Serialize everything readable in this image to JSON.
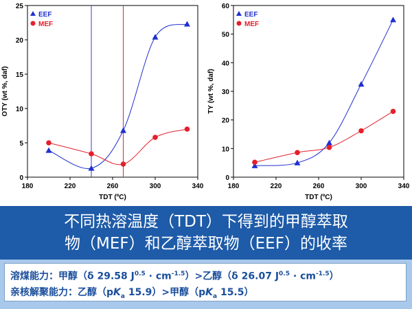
{
  "chart_data": [
    {
      "type": "line",
      "xlabel": "TDT (ºC)",
      "ylabel": "OTY (wt %, daf)",
      "xlim": [
        180,
        340
      ],
      "ylim": [
        0,
        25
      ],
      "xticks": [
        180,
        220,
        260,
        300,
        340
      ],
      "yticks": [
        0,
        5,
        10,
        15,
        20,
        25
      ],
      "legend_position": "top-left",
      "vlines": [
        {
          "x": 240,
          "color": "#3a3ad0"
        },
        {
          "x": 270,
          "color": "#c0303a"
        }
      ],
      "series": [
        {
          "name": "EEF",
          "marker": "triangle",
          "color": "#1f2fcf",
          "x": [
            200,
            240,
            270,
            300,
            330
          ],
          "y": [
            3.9,
            1.3,
            6.8,
            20.4,
            22.3
          ]
        },
        {
          "name": "MEF",
          "marker": "circle",
          "color": "#e3202c",
          "x": [
            200,
            240,
            270,
            300,
            330
          ],
          "y": [
            5.0,
            3.4,
            1.9,
            5.8,
            7.0
          ]
        }
      ]
    },
    {
      "type": "line",
      "xlabel": "TDT (ºC)",
      "ylabel": "TY (wt %, daf)",
      "xlim": [
        180,
        340
      ],
      "ylim": [
        0,
        60
      ],
      "xticks": [
        180,
        220,
        260,
        300,
        340
      ],
      "yticks": [
        0,
        10,
        20,
        30,
        40,
        50,
        60
      ],
      "legend_position": "top-left",
      "series": [
        {
          "name": "EEF",
          "marker": "triangle",
          "color": "#1f2fcf",
          "x": [
            200,
            240,
            270,
            300,
            330
          ],
          "y": [
            4.0,
            5.0,
            12.0,
            32.5,
            55.0
          ]
        },
        {
          "name": "MEF",
          "marker": "circle",
          "color": "#e3202c",
          "x": [
            200,
            240,
            270,
            300,
            330
          ],
          "y": [
            5.2,
            8.6,
            10.4,
            16.2,
            23.0
          ]
        }
      ]
    }
  ],
  "caption": {
    "line1": "不同热溶温度（TDT）下得到的甲醇萃取",
    "line2": "物（MEF）和乙醇萃取物（EEF）的收率"
  },
  "notes": {
    "solvency_prefix": "溶煤能力：甲醇（δ 29.58 J",
    "solvency_exp1": "0.5",
    "solvency_mid1": " · cm",
    "solvency_exp2": "-1.5",
    "solvency_mid2": "）>乙醇（δ 26.07 J",
    "solvency_exp3": "0.5",
    "solvency_mid3": " · cm",
    "solvency_exp4": "-1.5",
    "solvency_suffix": "）",
    "nucleo_prefix": "亲核解聚能力：乙醇（p",
    "nucleo_k1": "K",
    "nucleo_sub1": "a",
    "nucleo_mid": " 15.9）>甲醇（p",
    "nucleo_k2": "K",
    "nucleo_sub2": "a",
    "nucleo_suffix": " 15.5）"
  }
}
